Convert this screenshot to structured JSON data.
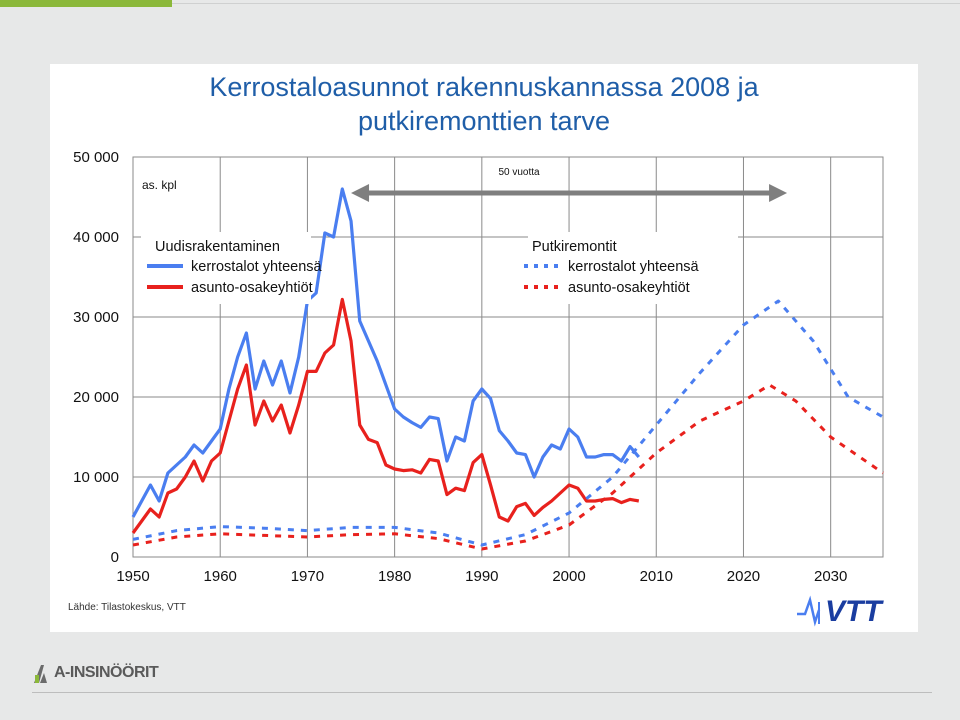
{
  "slide": {
    "title_line1": "Kerrostaloasunnot rakennuskannassa 2008 ja",
    "title_line2": "putkiremonttien tarve",
    "source": "Lähde: Tilastokeskus, VTT",
    "brand_logo_text": "VTT",
    "footer_brand": "A-INSINÖÖRIT"
  },
  "colors": {
    "blue": "#4a7ef0",
    "red": "#e8211d",
    "title": "#1f5ea8",
    "accent_green": "#8bb83a",
    "arrow": "#7f7f7f"
  },
  "chart_data": {
    "type": "line",
    "unit_label": "as. kpl",
    "span_label": "50 vuotta",
    "span_arrow": [
      1975,
      2025
    ],
    "xlim": [
      1950,
      2036
    ],
    "ylim": [
      0,
      50000
    ],
    "x_ticks": [
      1950,
      1960,
      1970,
      1980,
      1990,
      2000,
      2010,
      2020,
      2030
    ],
    "y_ticks": [
      0,
      10000,
      20000,
      30000,
      40000,
      50000
    ],
    "y_tick_labels": [
      "0",
      "10 000",
      "20 000",
      "30 000",
      "40 000",
      "50 000"
    ],
    "grid": true,
    "legend": {
      "left_title": "Uudisrakentaminen",
      "right_title": "Putkiremontit",
      "items": [
        {
          "label": "kerrostalot yhteensä",
          "color": "#4a7ef0",
          "style": "solid"
        },
        {
          "label": "asunto-osakeyhtiöt",
          "color": "#e8211d",
          "style": "solid"
        },
        {
          "label": "kerrostalot yhteensä",
          "color": "#4a7ef0",
          "style": "dotted"
        },
        {
          "label": "asunto-osakeyhtiöt",
          "color": "#e8211d",
          "style": "dotted"
        }
      ]
    },
    "series": [
      {
        "color": "#4a7ef0",
        "style": "solid",
        "x": [
          1950,
          1951,
          1952,
          1953,
          1954,
          1955,
          1956,
          1957,
          1958,
          1959,
          1960,
          1961,
          1962,
          1963,
          1964,
          1965,
          1966,
          1967,
          1968,
          1969,
          1970,
          1971,
          1972,
          1973,
          1974,
          1975,
          1976,
          1977,
          1978,
          1979,
          1980,
          1981,
          1982,
          1983,
          1984,
          1985,
          1986,
          1987,
          1988,
          1989,
          1990,
          1991,
          1992,
          1993,
          1994,
          1995,
          1996,
          1997,
          1998,
          1999,
          2000,
          2001,
          2002,
          2003,
          2004,
          2005,
          2006,
          2007,
          2008
        ],
        "y": [
          5000,
          7000,
          9000,
          7000,
          10500,
          11500,
          12500,
          14000,
          13000,
          14500,
          16000,
          21000,
          25000,
          28000,
          21000,
          24500,
          21500,
          24500,
          20500,
          25000,
          32000,
          33000,
          40500,
          40000,
          46000,
          42000,
          29500,
          27000,
          24500,
          21500,
          18500,
          17500,
          16800,
          16200,
          17500,
          17300,
          12000,
          15000,
          14500,
          19500,
          21000,
          19800,
          15800,
          14500,
          13000,
          12800,
          10000,
          12500,
          14000,
          13500,
          16000,
          15000,
          12500,
          12500,
          12800,
          12800,
          12000,
          13800,
          12500
        ]
      },
      {
        "color": "#e8211d",
        "style": "solid",
        "x": [
          1950,
          1951,
          1952,
          1953,
          1954,
          1955,
          1956,
          1957,
          1958,
          1959,
          1960,
          1961,
          1962,
          1963,
          1964,
          1965,
          1966,
          1967,
          1968,
          1969,
          1970,
          1971,
          1972,
          1973,
          1974,
          1975,
          1976,
          1977,
          1978,
          1979,
          1980,
          1981,
          1982,
          1983,
          1984,
          1985,
          1986,
          1987,
          1988,
          1989,
          1990,
          1991,
          1992,
          1993,
          1994,
          1995,
          1996,
          1997,
          1998,
          1999,
          2000,
          2001,
          2002,
          2003,
          2004,
          2005,
          2006,
          2007,
          2008
        ],
        "y": [
          3000,
          4500,
          6000,
          5000,
          8000,
          8500,
          10000,
          12000,
          9500,
          12000,
          13000,
          17000,
          21000,
          24000,
          16500,
          19500,
          17000,
          19000,
          15500,
          19000,
          23200,
          23200,
          25500,
          26500,
          32200,
          27000,
          16500,
          14700,
          14300,
          11500,
          11000,
          10800,
          10900,
          10500,
          12200,
          12000,
          7800,
          8600,
          8300,
          11800,
          12800,
          9000,
          5000,
          4500,
          6300,
          6700,
          5200,
          6200,
          7000,
          8000,
          9000,
          8600,
          7000,
          7000,
          7200,
          7300,
          6800,
          7200,
          7000
        ]
      },
      {
        "color": "#4a7ef0",
        "style": "dotted",
        "x": [
          1950,
          1955,
          1960,
          1965,
          1970,
          1975,
          1980,
          1985,
          1990,
          1995,
          2000,
          2005,
          2010,
          2015,
          2020,
          2024,
          2028,
          2032,
          2036
        ],
        "y": [
          2200,
          3300,
          3800,
          3600,
          3300,
          3700,
          3700,
          3000,
          1500,
          2800,
          5500,
          10000,
          16500,
          23000,
          29000,
          32000,
          27000,
          20000,
          17500
        ]
      },
      {
        "color": "#e8211d",
        "style": "dotted",
        "x": [
          1950,
          1955,
          1960,
          1965,
          1970,
          1975,
          1980,
          1985,
          1990,
          1995,
          2000,
          2005,
          2010,
          2015,
          2020,
          2023,
          2026,
          2030,
          2036
        ],
        "y": [
          1500,
          2500,
          2900,
          2700,
          2500,
          2800,
          2900,
          2300,
          1000,
          2000,
          4000,
          8000,
          13000,
          17000,
          19500,
          21500,
          19500,
          15000,
          10500
        ]
      }
    ]
  }
}
